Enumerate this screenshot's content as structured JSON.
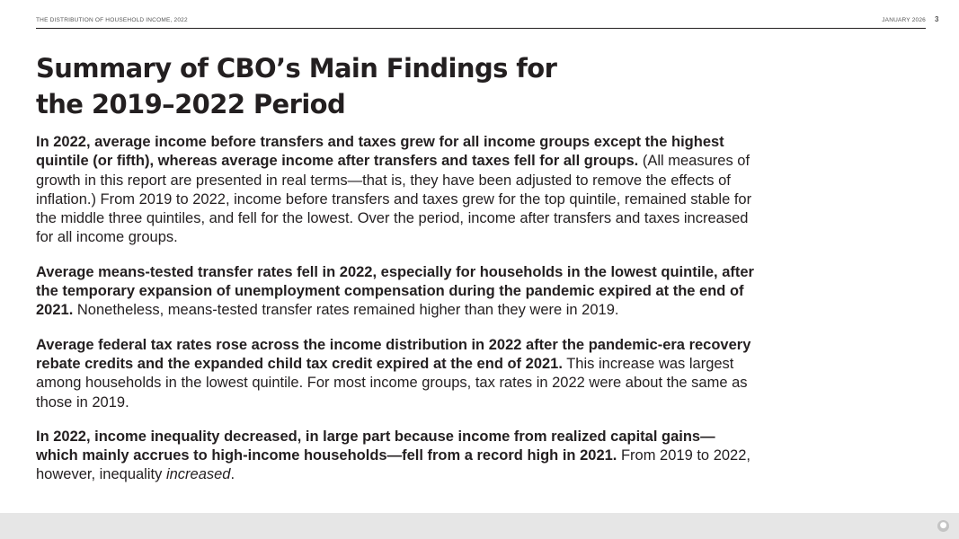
{
  "header": {
    "report_title": "THE DISTRIBUTION OF HOUSEHOLD INCOME, 2022",
    "date": "JANUARY 2026",
    "page_number": "3"
  },
  "title": {
    "line1": "Summary of CBO’s Main Findings for",
    "line2": "the 2019–2022 Period"
  },
  "paragraphs": [
    {
      "bold": "In 2022, average income before transfers and taxes grew for all income groups except the highest quintile (or fifth), whereas average income after transfers and taxes fell for all groups.",
      "text": " (All measures of growth in this report are presented in real terms—that is, they have been adjusted to remove the effects of inflation.) From 2019 to 2022, income before transfers and taxes grew for the top quintile, remained stable for the middle three quintiles, and fell for the lowest. Over the period, income after transfers and taxes increased for all income groups."
    },
    {
      "bold": "Average means-tested transfer rates fell in 2022, especially for households in the lowest quintile, after the temporary expansion of unemployment compensation during the pandemic expired at the end of 2021.",
      "text": " Nonetheless, means-tested transfer rates remained higher than they were in 2019."
    },
    {
      "bold": "Average federal tax rates rose across the income distribution in 2022 after the pandemic-era recovery rebate credits and the expanded child tax credit expired at the end of 2021.",
      "text": " This increase was largest among households in the lowest quintile. For most income groups, tax rates in 2022 were about the same as those in 2019."
    },
    {
      "bold": "In 2022, income inequality decreased, in large part because income from realized capital gains—which mainly accrues to high-income households—fell from a record high in 2021.",
      "text": " From 2019 to 2022, however, inequality ",
      "italic": "increased",
      "tail": "."
    }
  ],
  "footer": {
    "icon": "page-menu-icon",
    "background_color": "#e6e6e6"
  }
}
